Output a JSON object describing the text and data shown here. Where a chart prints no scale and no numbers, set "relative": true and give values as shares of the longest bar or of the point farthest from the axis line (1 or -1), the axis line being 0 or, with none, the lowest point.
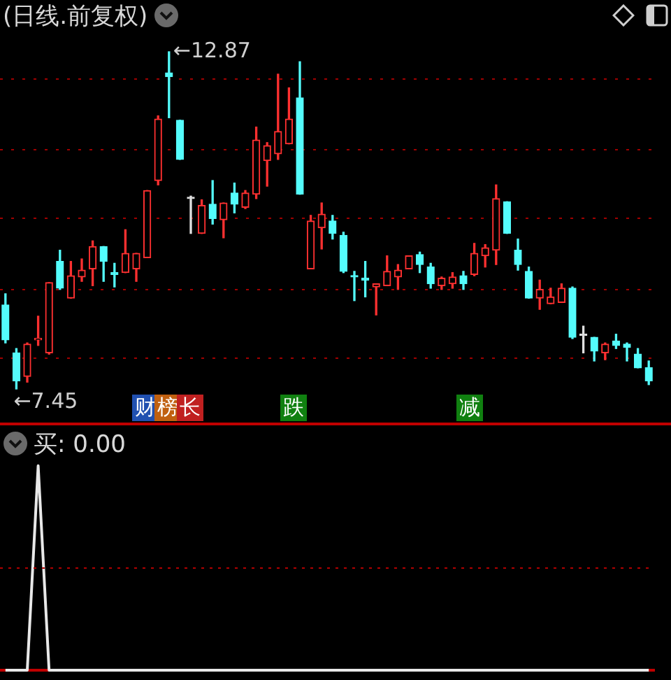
{
  "chart_data": [
    {
      "type": "candlestick",
      "title": "(日线.前复权)",
      "categories": [
        null,
        null,
        null,
        null,
        null,
        null,
        null,
        null,
        null,
        null,
        null,
        null,
        null,
        null,
        null,
        null,
        null,
        null,
        null,
        null,
        null,
        null,
        null,
        null,
        null,
        null,
        null,
        null,
        null,
        null,
        null,
        null,
        null,
        null,
        null,
        null,
        null,
        null,
        null,
        null,
        null,
        null,
        null,
        null,
        null,
        null,
        null,
        null,
        null,
        null,
        null,
        null,
        null,
        null,
        null,
        null,
        null,
        null,
        null,
        null
      ],
      "ohlc": [
        [
          8.8,
          8.98,
          8.19,
          8.24
        ],
        [
          8.03,
          8.1,
          7.45,
          7.58
        ],
        [
          7.65,
          8.19,
          7.56,
          8.17
        ],
        [
          8.24,
          8.62,
          8.15,
          8.26
        ],
        [
          8.03,
          9.16,
          8.01,
          9.16
        ],
        [
          9.5,
          9.68,
          9.05,
          9.07
        ],
        [
          8.91,
          9.5,
          8.91,
          9.27
        ],
        [
          9.25,
          9.54,
          9.18,
          9.36
        ],
        [
          9.38,
          9.83,
          9.11,
          9.74
        ],
        [
          9.74,
          9.74,
          9.18,
          9.5
        ],
        [
          9.32,
          9.47,
          9.09,
          9.29
        ],
        [
          9.32,
          10.01,
          9.32,
          9.63
        ],
        [
          9.38,
          9.63,
          9.18,
          9.63
        ],
        [
          9.56,
          10.64,
          9.56,
          10.64
        ],
        [
          10.8,
          11.84,
          10.73,
          11.79
        ],
        [
          12.53,
          12.87,
          11.81,
          12.47
        ],
        [
          11.77,
          11.77,
          11.14,
          11.14
        ],
        [
          10.51,
          10.55,
          9.95,
          10.51
        ],
        [
          9.95,
          10.49,
          9.95,
          10.4
        ],
        [
          10.42,
          10.8,
          10.1,
          10.19
        ],
        [
          10.17,
          10.44,
          9.88,
          10.44
        ],
        [
          10.6,
          10.76,
          10.28,
          10.42
        ],
        [
          10.37,
          10.64,
          10.35,
          10.6
        ],
        [
          10.58,
          11.66,
          10.51,
          11.45
        ],
        [
          11.12,
          11.41,
          10.71,
          11.36
        ],
        [
          11.23,
          12.51,
          11.14,
          11.59
        ],
        [
          11.39,
          12.29,
          11.39,
          11.79
        ],
        [
          12.13,
          12.71,
          10.58,
          10.58
        ],
        [
          9.38,
          10.24,
          9.38,
          10.15
        ],
        [
          10.04,
          10.44,
          9.7,
          10.26
        ],
        [
          10.15,
          10.24,
          9.86,
          9.95
        ],
        [
          9.92,
          9.97,
          9.32,
          9.34
        ],
        [
          9.27,
          9.34,
          8.87,
          9.25
        ],
        [
          9.23,
          9.5,
          8.93,
          9.2
        ],
        [
          9.09,
          9.14,
          8.64,
          9.14
        ],
        [
          9.11,
          9.59,
          9.11,
          9.34
        ],
        [
          9.25,
          9.45,
          9.05,
          9.36
        ],
        [
          9.38,
          9.59,
          9.38,
          9.59
        ],
        [
          9.61,
          9.65,
          9.32,
          9.45
        ],
        [
          9.41,
          9.47,
          9.07,
          9.14
        ],
        [
          9.11,
          9.25,
          9.05,
          9.23
        ],
        [
          9.14,
          9.32,
          9.07,
          9.25
        ],
        [
          9.27,
          9.34,
          9.05,
          9.14
        ],
        [
          9.29,
          9.79,
          9.27,
          9.63
        ],
        [
          9.59,
          9.77,
          9.41,
          9.72
        ],
        [
          9.68,
          10.73,
          9.45,
          10.51
        ],
        [
          10.46,
          10.46,
          9.95,
          9.95
        ],
        [
          9.68,
          9.86,
          9.36,
          9.45
        ],
        [
          9.34,
          9.41,
          8.91,
          8.91
        ],
        [
          8.91,
          9.2,
          8.73,
          9.05
        ],
        [
          8.82,
          9.07,
          8.82,
          8.93
        ],
        [
          8.84,
          9.14,
          8.84,
          9.07
        ],
        [
          9.07,
          9.09,
          8.26,
          8.28
        ],
        [
          8.31,
          8.46,
          8.03,
          8.31
        ],
        [
          8.28,
          8.28,
          7.9,
          8.06
        ],
        [
          8.03,
          8.19,
          7.92,
          8.17
        ],
        [
          8.22,
          8.33,
          8.1,
          8.15
        ],
        [
          8.17,
          8.19,
          7.9,
          8.12
        ],
        [
          8.01,
          8.1,
          7.79,
          7.79
        ],
        [
          7.79,
          7.9,
          7.52,
          7.58
        ]
      ],
      "colors": [
        "#54fcfc",
        "#54fcfc",
        "#ff3030",
        "#ff3030",
        "#ff3030",
        "#54fcfc",
        "#ff3030",
        "#ff3030",
        "#ff3030",
        "#54fcfc",
        "#54fcfc",
        "#ff3030",
        "#ff3030",
        "#ff3030",
        "#ff3030",
        "#54fcfc",
        "#54fcfc",
        "#e0e0e0",
        "#ff3030",
        "#54fcfc",
        "#ff3030",
        "#54fcfc",
        "#ff3030",
        "#ff3030",
        "#ff3030",
        "#ff3030",
        "#ff3030",
        "#54fcfc",
        "#ff3030",
        "#ff3030",
        "#54fcfc",
        "#54fcfc",
        "#54fcfc",
        "#54fcfc",
        "#ff3030",
        "#ff3030",
        "#ff3030",
        "#ff3030",
        "#54fcfc",
        "#54fcfc",
        "#ff3030",
        "#ff3030",
        "#54fcfc",
        "#ff3030",
        "#ff3030",
        "#ff3030",
        "#54fcfc",
        "#54fcfc",
        "#54fcfc",
        "#ff3030",
        "#ff3030",
        "#ff3030",
        "#54fcfc",
        "#e0e0e0",
        "#54fcfc",
        "#ff3030",
        "#54fcfc",
        "#54fcfc",
        "#54fcfc",
        "#54fcfc"
      ],
      "yticks": [
        {
          "value": 7.94,
          "label": null
        },
        {
          "value": 9.05,
          "label": null
        },
        {
          "value": 10.19,
          "label": null
        },
        {
          "value": 11.3,
          "label": null
        },
        {
          "value": 12.43,
          "label": null
        }
      ],
      "grid": "y",
      "tick_labels": false,
      "annotations": [
        "←12.87",
        "←7.45",
        "财",
        "榜",
        "长",
        "跌",
        "减"
      ]
    },
    {
      "type": "line",
      "title": "买: 0.00",
      "relative": true,
      "color": "#e8e8e8",
      "tick_labels": false,
      "categories": [
        null,
        null,
        null,
        null,
        null,
        null,
        null,
        null,
        null,
        null,
        null,
        null,
        null,
        null,
        null,
        null,
        null,
        null,
        null,
        null,
        null,
        null,
        null,
        null,
        null,
        null,
        null,
        null,
        null,
        null,
        null,
        null,
        null,
        null,
        null,
        null,
        null,
        null,
        null,
        null,
        null,
        null,
        null,
        null,
        null,
        null,
        null,
        null,
        null,
        null,
        null,
        null,
        null,
        null,
        null,
        null,
        null,
        null,
        null,
        null
      ],
      "values": [
        0,
        0,
        0,
        1,
        0,
        0,
        0,
        0,
        0,
        0,
        0,
        0,
        0,
        0,
        0,
        0,
        0,
        0,
        0,
        0,
        0,
        0,
        0,
        0,
        0,
        0,
        0,
        0,
        0,
        0,
        0,
        0,
        0,
        0,
        0,
        0,
        0,
        0,
        0,
        0,
        0,
        0,
        0,
        0,
        0,
        0,
        0,
        0,
        0,
        0,
        0,
        0,
        0,
        0,
        0,
        0,
        0,
        0,
        0,
        0
      ],
      "ref_lines": [
        {
          "axis": "y",
          "value": 0.5,
          "color": "#b00000",
          "line_style": "dotted"
        }
      ]
    }
  ]
}
